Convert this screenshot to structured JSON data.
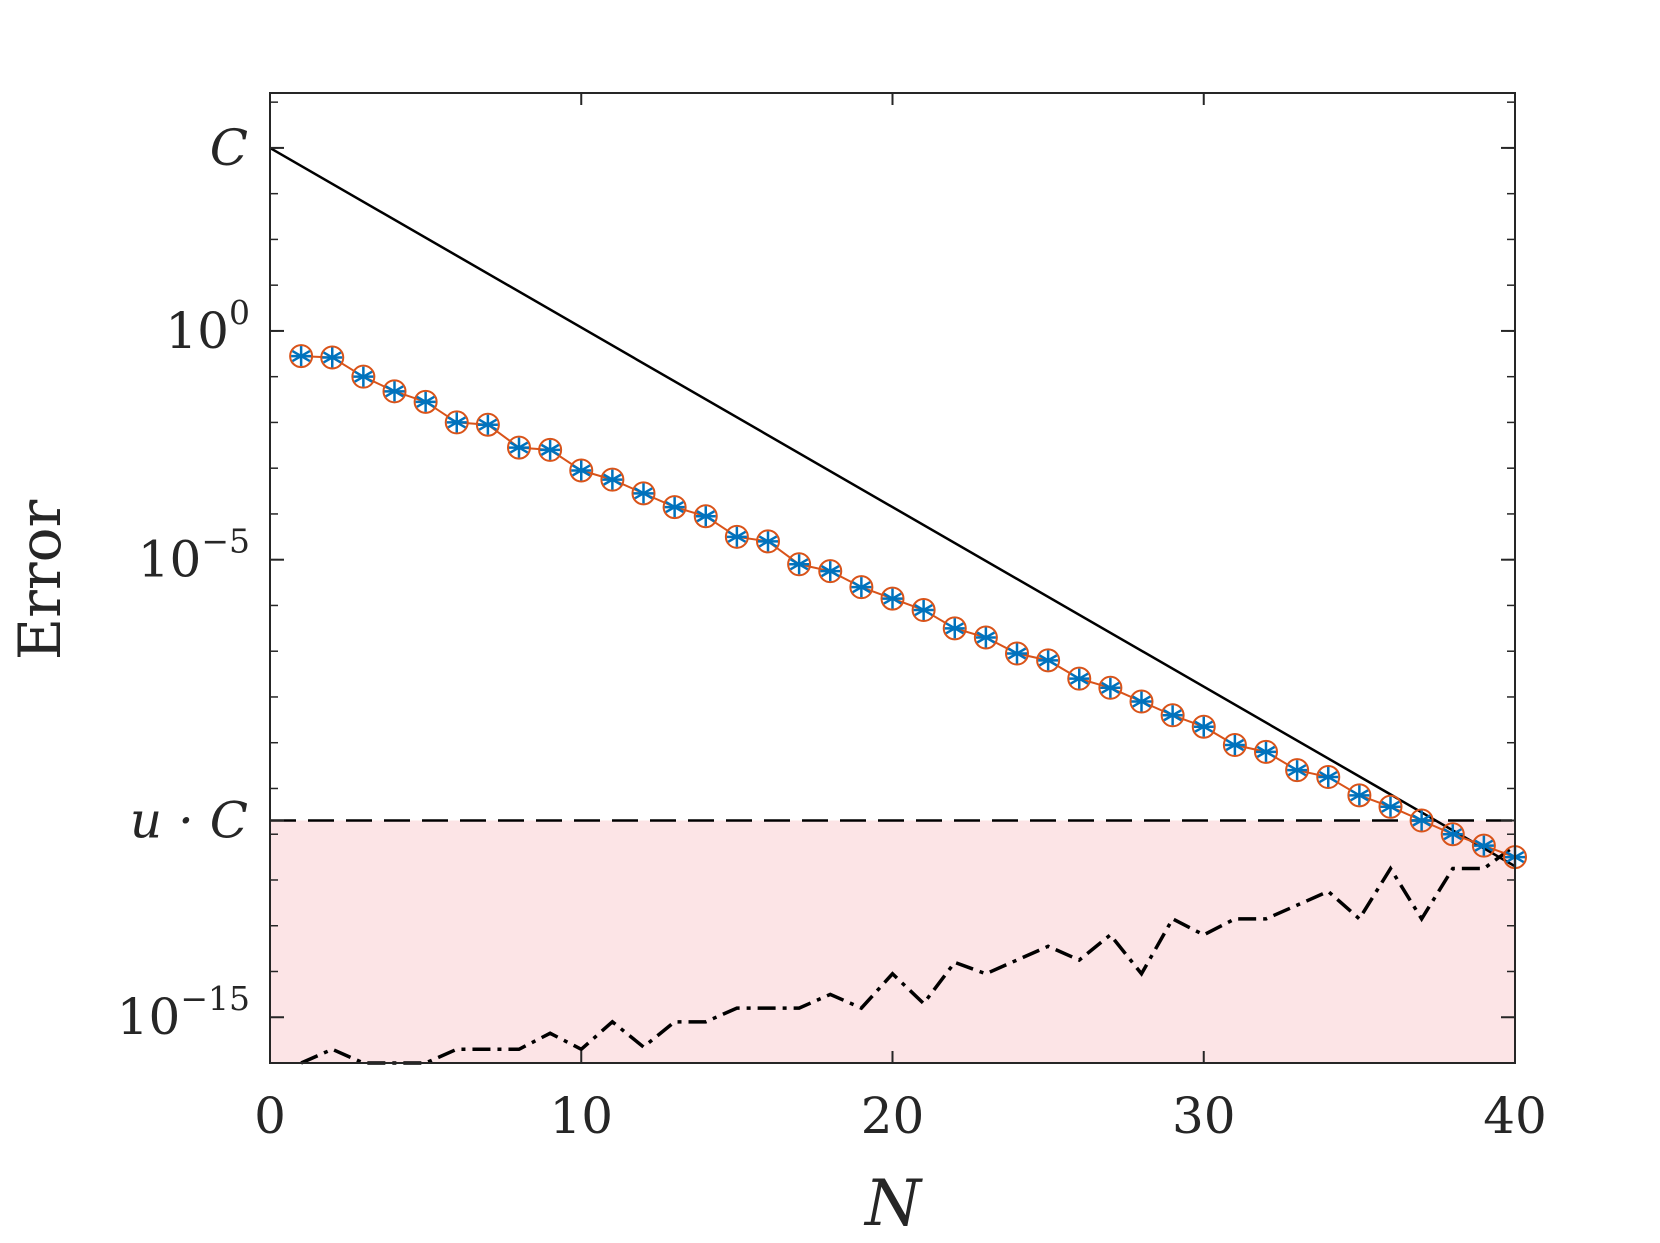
{
  "chart_data": {
    "type": "line",
    "title": "",
    "xlabel": "N",
    "ylabel": "Error",
    "xlim": [
      0,
      40
    ],
    "ylim_log10": [
      -16,
      5.2
    ],
    "y_scale": "log",
    "grid": false,
    "x_ticks": [
      0,
      10,
      20,
      30,
      40
    ],
    "x_tick_labels": [
      "0",
      "10",
      "20",
      "30",
      "40"
    ],
    "y_ticks": [
      {
        "log10": 4,
        "base": "C",
        "exp": ""
      },
      {
        "log10": 0,
        "base": "10",
        "exp": "0"
      },
      {
        "log10": -5,
        "base": "10",
        "exp": "−5"
      },
      {
        "log10": -10.7,
        "base": "u · C",
        "exp": ""
      },
      {
        "log10": -15,
        "base": "10",
        "exp": "−15"
      }
    ],
    "reference_lines": {
      "C_log10": 4,
      "uC_log10": -10.7,
      "bound_line": {
        "x": [
          0,
          40
        ],
        "log10": [
          4,
          -11.7
        ]
      }
    },
    "shaded_region": {
      "from_log10": -16,
      "to_log10": -10.7,
      "color": "#fce4e6"
    },
    "series": [
      {
        "marker": "circle",
        "color": "#d95319",
        "x": [
          1,
          2,
          3,
          4,
          5,
          6,
          7,
          8,
          9,
          10,
          11,
          12,
          13,
          14,
          15,
          16,
          17,
          18,
          19,
          20,
          21,
          22,
          23,
          24,
          25,
          26,
          27,
          28,
          29,
          30,
          31,
          32,
          33,
          34,
          35,
          36,
          37,
          38,
          39,
          40
        ],
        "log10": [
          -0.55,
          -0.58,
          -1.0,
          -1.32,
          -1.55,
          -2.0,
          -2.05,
          -2.55,
          -2.6,
          -3.05,
          -3.25,
          -3.55,
          -3.85,
          -4.05,
          -4.5,
          -4.6,
          -5.1,
          -5.25,
          -5.6,
          -5.85,
          -6.1,
          -6.5,
          -6.7,
          -7.05,
          -7.2,
          -7.6,
          -7.8,
          -8.1,
          -8.4,
          -8.65,
          -9.05,
          -9.2,
          -9.6,
          -9.75,
          -10.15,
          -10.4,
          -10.7,
          -11.0,
          -11.25,
          -11.5
        ]
      },
      {
        "marker": "asterisk",
        "color": "#0072bd",
        "x": [
          1,
          2,
          3,
          4,
          5,
          6,
          7,
          8,
          9,
          10,
          11,
          12,
          13,
          14,
          15,
          16,
          17,
          18,
          19,
          20,
          21,
          22,
          23,
          24,
          25,
          26,
          27,
          28,
          29,
          30,
          31,
          32,
          33,
          34,
          35,
          36,
          37,
          38,
          39,
          40
        ],
        "log10": [
          -0.55,
          -0.58,
          -1.0,
          -1.32,
          -1.55,
          -2.0,
          -2.05,
          -2.55,
          -2.6,
          -3.05,
          -3.25,
          -3.55,
          -3.85,
          -4.05,
          -4.5,
          -4.6,
          -5.1,
          -5.25,
          -5.6,
          -5.85,
          -6.1,
          -6.5,
          -6.7,
          -7.05,
          -7.2,
          -7.6,
          -7.8,
          -8.1,
          -8.4,
          -8.65,
          -9.05,
          -9.2,
          -9.6,
          -9.75,
          -10.15,
          -10.4,
          -10.7,
          -11.0,
          -11.25,
          -11.5
        ]
      },
      {
        "style": "dash-dot",
        "color": "#000000",
        "x": [
          1,
          2,
          3,
          4,
          5,
          6,
          7,
          8,
          9,
          10,
          11,
          12,
          13,
          14,
          15,
          16,
          17,
          18,
          19,
          20,
          21,
          22,
          23,
          24,
          25,
          26,
          27,
          28,
          29,
          30,
          31,
          32,
          33,
          34,
          35,
          36,
          37,
          38,
          39,
          40
        ],
        "log10": [
          -16.0,
          -15.7,
          -16.0,
          -16.0,
          -16.0,
          -15.7,
          -15.7,
          -15.7,
          -15.35,
          -15.7,
          -15.1,
          -15.65,
          -15.1,
          -15.1,
          -14.8,
          -14.8,
          -14.8,
          -14.5,
          -14.8,
          -14.05,
          -14.7,
          -13.8,
          -14.05,
          -13.75,
          -13.45,
          -13.75,
          -13.2,
          -14.05,
          -12.85,
          -13.2,
          -12.85,
          -12.85,
          -12.55,
          -12.25,
          -12.85,
          -11.75,
          -12.85,
          -11.75,
          -11.75,
          -11.25
        ]
      }
    ]
  }
}
